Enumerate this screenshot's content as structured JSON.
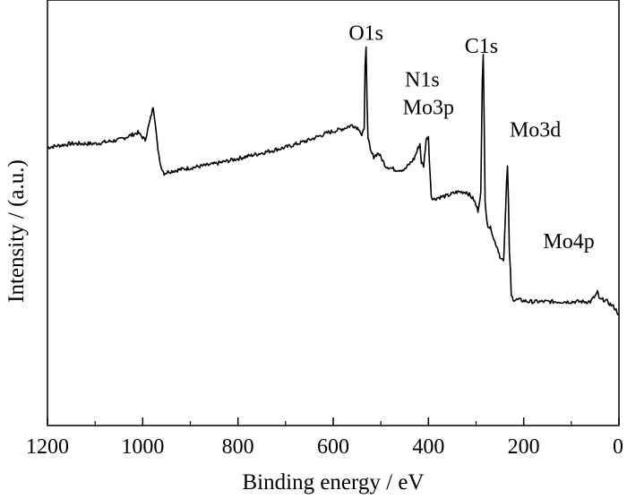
{
  "chart_data": {
    "type": "line",
    "title": "",
    "xlabel": "Binding energy / eV",
    "ylabel": "Intensity / (a.u.)",
    "xlim": [
      1200,
      0
    ],
    "ylim": [
      0,
      100
    ],
    "x_reversed": true,
    "y_ticks_labeled": false,
    "xticks": [
      1200,
      1000,
      800,
      600,
      400,
      200,
      0
    ],
    "xtick_labels": [
      "1200",
      "1000",
      "800",
      "600",
      "400",
      "200",
      "0"
    ],
    "grid": false,
    "legend": "none",
    "series": [
      {
        "x": [
          1200,
          1150,
          1100,
          1050,
          1010,
          995,
          985,
          978,
          972,
          968,
          962,
          955,
          945,
          900,
          850,
          800,
          750,
          700,
          650,
          610,
          580,
          560,
          545,
          540,
          535,
          533,
          531,
          529,
          527,
          522,
          515,
          505,
          490,
          470,
          450,
          430,
          418,
          415,
          410,
          405,
          400,
          398,
          394,
          390,
          380,
          360,
          340,
          320,
          305,
          296,
          290,
          287,
          285,
          283,
          281,
          279,
          275,
          268,
          262,
          255,
          248,
          242,
          236,
          234,
          232,
          230,
          228,
          226,
          220,
          210,
          190,
          150,
          100,
          60,
          50,
          45,
          40,
          30,
          20,
          10,
          0
        ],
        "y": [
          70,
          71,
          71,
          72,
          74,
          72,
          77,
          81,
          75,
          69,
          65,
          63,
          63.5,
          64.5,
          65.5,
          67,
          68.5,
          70,
          72,
          74,
          75,
          76,
          75,
          73,
          75,
          92,
          97,
          83,
          73,
          69,
          67.5,
          68.5,
          65,
          64,
          64,
          67,
          71,
          66,
          65,
          72,
          73,
          66,
          57,
          56,
          56.5,
          57,
          58,
          58,
          56,
          53,
          58,
          87,
          95,
          78,
          55,
          52,
          49,
          48,
          45,
          43,
          40,
          39.5,
          60,
          65,
          55,
          42,
          37,
          30,
          29,
          29,
          28.5,
          28.5,
          28.5,
          28.5,
          30,
          31,
          29,
          29,
          28,
          27,
          25
        ]
      }
    ],
    "annotations": [
      {
        "text": "O1s",
        "x": 531,
        "y": 97
      },
      {
        "text": "N1s",
        "x": 398,
        "y": 85
      },
      {
        "text": "Mo3p",
        "x": 400,
        "y": 77
      },
      {
        "text": "C1s",
        "x": 285,
        "y": 93
      },
      {
        "text": "Mo3d",
        "x": 232,
        "y": 71
      },
      {
        "text": "Mo4p",
        "x": 45,
        "y": 40
      }
    ]
  }
}
